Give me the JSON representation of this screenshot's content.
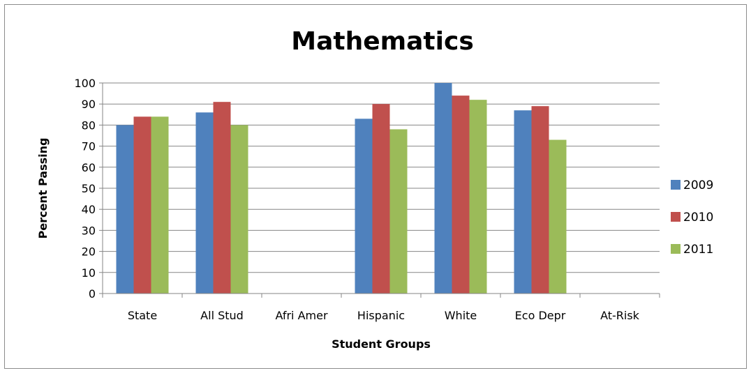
{
  "chart_data": {
    "type": "bar",
    "title": "Mathematics",
    "xlabel": "Student Groups",
    "ylabel": "Percent Passing",
    "categories": [
      "State",
      "All Stud",
      "Afri Amer",
      "Hispanic",
      "White",
      "Eco Depr",
      "At-Risk"
    ],
    "series": [
      {
        "name": "2009",
        "color": "#4f81bd",
        "values": [
          80,
          86,
          null,
          83,
          100,
          87,
          null
        ]
      },
      {
        "name": "2010",
        "color": "#c0504d",
        "values": [
          84,
          91,
          null,
          90,
          94,
          89,
          null
        ]
      },
      {
        "name": "2011",
        "color": "#9bbb59",
        "values": [
          84,
          80,
          null,
          78,
          92,
          73,
          null
        ]
      }
    ],
    "ylim": [
      0,
      100
    ],
    "yticks": [
      0,
      10,
      20,
      30,
      40,
      50,
      60,
      70,
      80,
      90,
      100
    ],
    "grid": true,
    "legend_position": "right"
  }
}
